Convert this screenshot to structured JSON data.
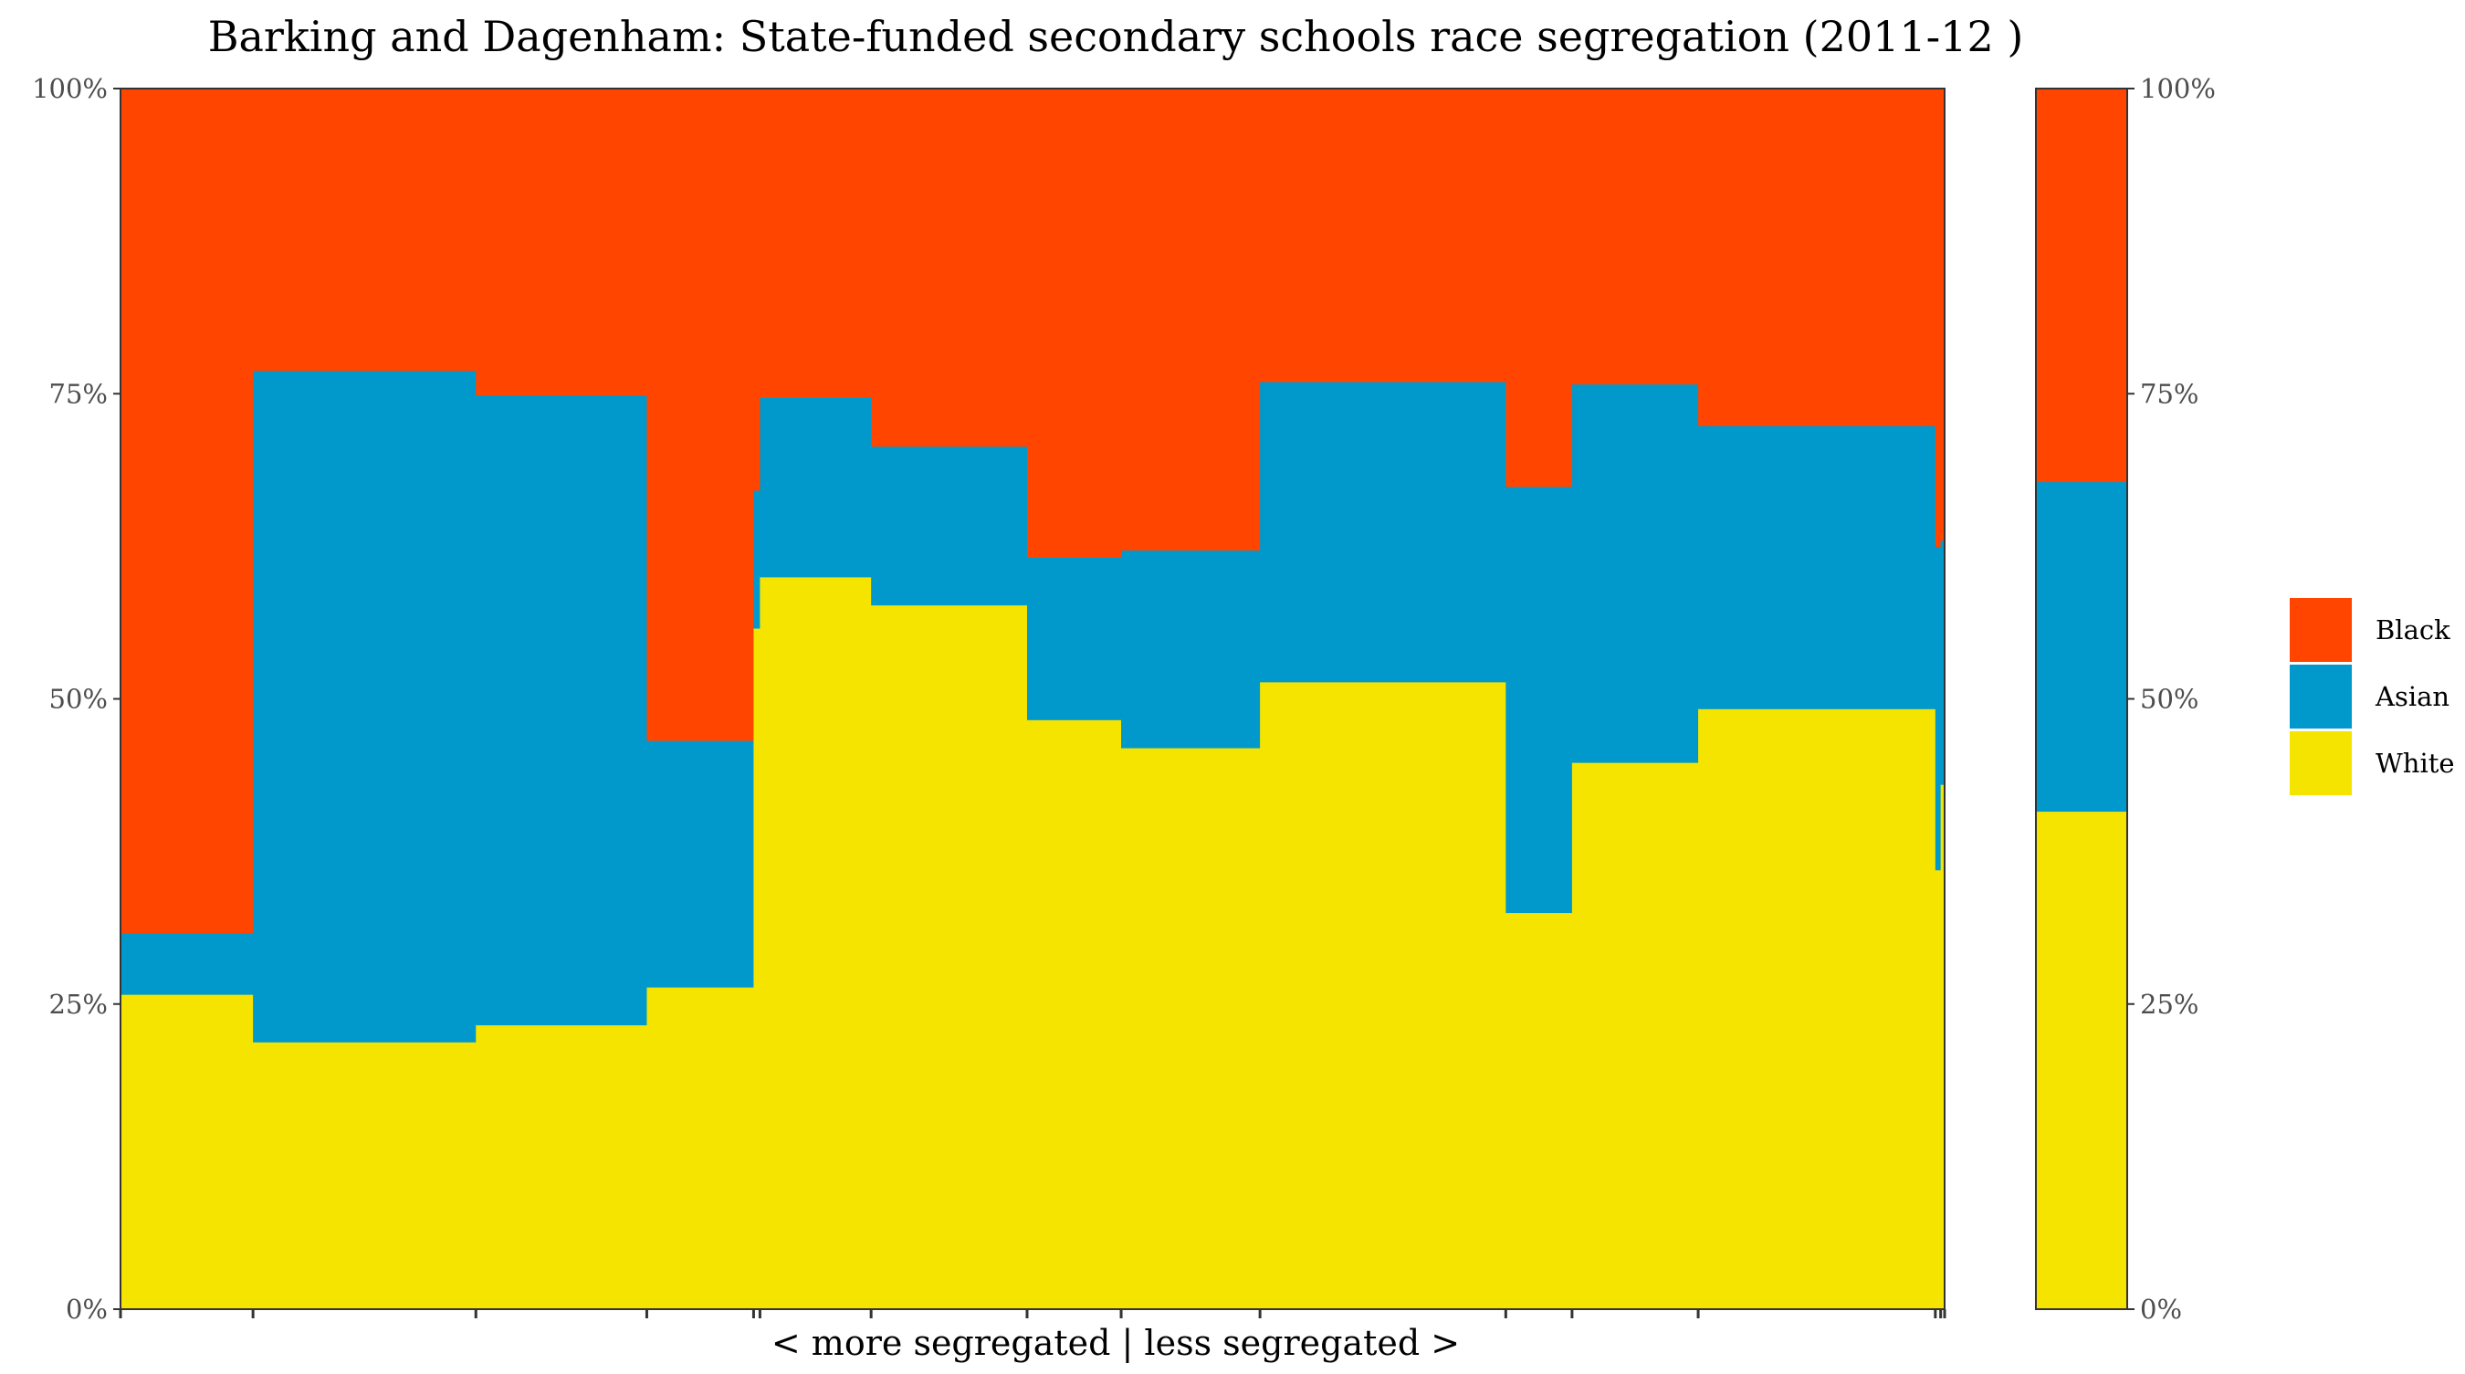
{
  "chart_data": {
    "type": "bar",
    "subtype": "stacked-proportional-mosaic",
    "title": "Barking and Dagenham: State-funded secondary schools race segregation (2011-12 )",
    "xlabel": "< more segregated | less segregated >",
    "ylabel": "",
    "ylim": [
      0,
      1
    ],
    "y_ticks": [
      "0%",
      "25%",
      "50%",
      "75%",
      "100%"
    ],
    "y_ticks_right": [
      "0%",
      "25%",
      "50%",
      "75%",
      "100%"
    ],
    "grid": false,
    "legend_position": "right",
    "legend": [
      "Black",
      "Asian",
      "White"
    ],
    "series_order": [
      "White",
      "Asian",
      "Black"
    ],
    "colors": {
      "White": "#F5E400",
      "Asian": "#0199CC",
      "Black": "#FF4500"
    },
    "schools": [
      {
        "share": 1.0,
        "White": 0.258,
        "Asian": 0.05,
        "Black": 0.692
      },
      {
        "share": 1.682,
        "White": 0.219,
        "Asian": 0.55,
        "Black": 0.231
      },
      {
        "share": 1.29,
        "White": 0.233,
        "Asian": 0.516,
        "Black": 0.251
      },
      {
        "share": 0.806,
        "White": 0.264,
        "Asian": 0.202,
        "Black": 0.534
      },
      {
        "share": 0.048,
        "White": 0.558,
        "Asian": 0.113,
        "Black": 0.329
      },
      {
        "share": 0.839,
        "White": 0.6,
        "Asian": 0.147,
        "Black": 0.253
      },
      {
        "share": 1.177,
        "White": 0.577,
        "Asian": 0.13,
        "Black": 0.293
      },
      {
        "share": 0.71,
        "White": 0.483,
        "Asian": 0.133,
        "Black": 0.384
      },
      {
        "share": 1.048,
        "White": 0.46,
        "Asian": 0.162,
        "Black": 0.378
      },
      {
        "share": 1.855,
        "White": 0.514,
        "Asian": 0.246,
        "Black": 0.24
      },
      {
        "share": 0.5,
        "White": 0.325,
        "Asian": 0.349,
        "Black": 0.326
      },
      {
        "share": 0.952,
        "White": 0.448,
        "Asian": 0.31,
        "Black": 0.242
      },
      {
        "share": 1.79,
        "White": 0.492,
        "Asian": 0.232,
        "Black": 0.276
      },
      {
        "share": 0.04,
        "White": 0.36,
        "Asian": 0.265,
        "Black": 0.375
      },
      {
        "share": 0.03,
        "White": 0.43,
        "Asian": 0.2,
        "Black": 0.37
      }
    ],
    "overall": {
      "White": 0.408,
      "Asian": 0.27,
      "Black": 0.322
    }
  }
}
